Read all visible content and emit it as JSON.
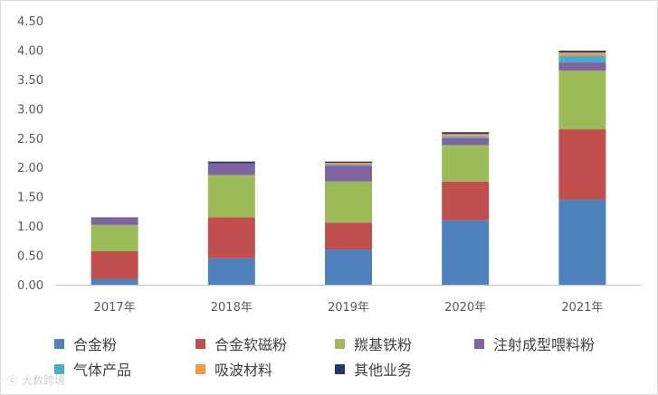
{
  "chart_data": {
    "type": "bar",
    "stacked": true,
    "categories": [
      "2017年",
      "2018年",
      "2019年",
      "2020年",
      "2021年"
    ],
    "ylim": [
      0,
      4.5
    ],
    "yticks": [
      "0.00",
      "0.50",
      "1.00",
      "1.50",
      "2.00",
      "2.50",
      "3.00",
      "3.50",
      "4.00",
      "4.50"
    ],
    "series": [
      {
        "name": "合金粉",
        "color": "#4f81bd",
        "values": [
          0.1,
          0.45,
          0.6,
          1.1,
          1.45
        ]
      },
      {
        "name": "合金软磁粉",
        "color": "#c0504d",
        "values": [
          0.47,
          0.7,
          0.46,
          0.66,
          1.2
        ]
      },
      {
        "name": "羰基铁粉",
        "color": "#9bbb59",
        "values": [
          0.45,
          0.72,
          0.7,
          0.62,
          1.0
        ]
      },
      {
        "name": "注射成型喂料粉",
        "color": "#8064a2",
        "values": [
          0.13,
          0.2,
          0.27,
          0.12,
          0.14
        ]
      },
      {
        "name": "气体产品",
        "color": "#4bacc6",
        "values": [
          0.0,
          0.0,
          0.02,
          0.03,
          0.12
        ]
      },
      {
        "name": "吸波材料",
        "color": "#f79646",
        "values": [
          0.0,
          0.0,
          0.03,
          0.04,
          0.05
        ]
      },
      {
        "name": "其他业务",
        "color": "#1f3864",
        "values": [
          0.0,
          0.03,
          0.02,
          0.03,
          0.03
        ]
      }
    ],
    "legend_position": "bottom",
    "grid": false
  },
  "watermark": {
    "text": "大数跨境",
    "icon": "logo-icon"
  }
}
